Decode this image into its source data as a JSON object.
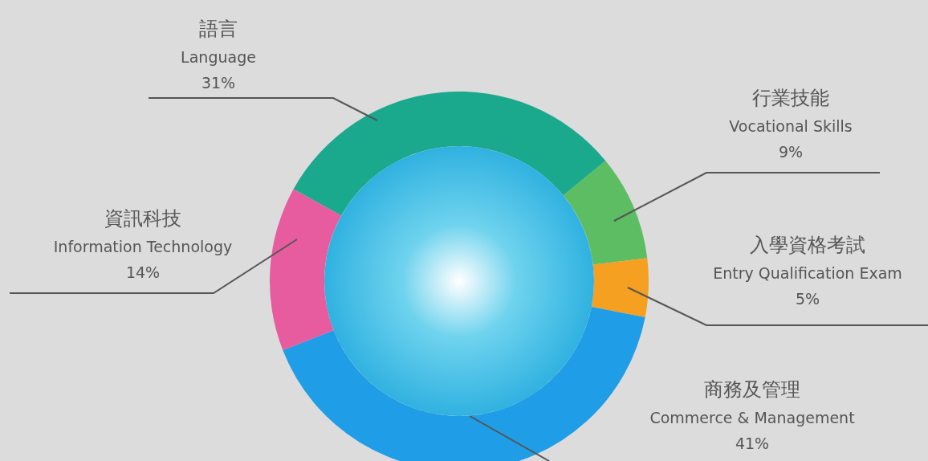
{
  "chart_data": {
    "type": "donut",
    "categories": [
      "語言\nLanguage",
      "行業技能\nVocational Skills",
      "入學資格考試\nEntry Qualification Exam",
      "商務及管理\nCommerce & Management",
      "資訊科技\nInformation Technology"
    ],
    "values": [
      31,
      9,
      5,
      41,
      14
    ],
    "value_labels": [
      "31%",
      "9%",
      "5%",
      "41%",
      "14%"
    ],
    "colors": [
      "#1aa98c",
      "#5dbd62",
      "#f5a020",
      "#1f9de6",
      "#e75c9f"
    ]
  }
}
